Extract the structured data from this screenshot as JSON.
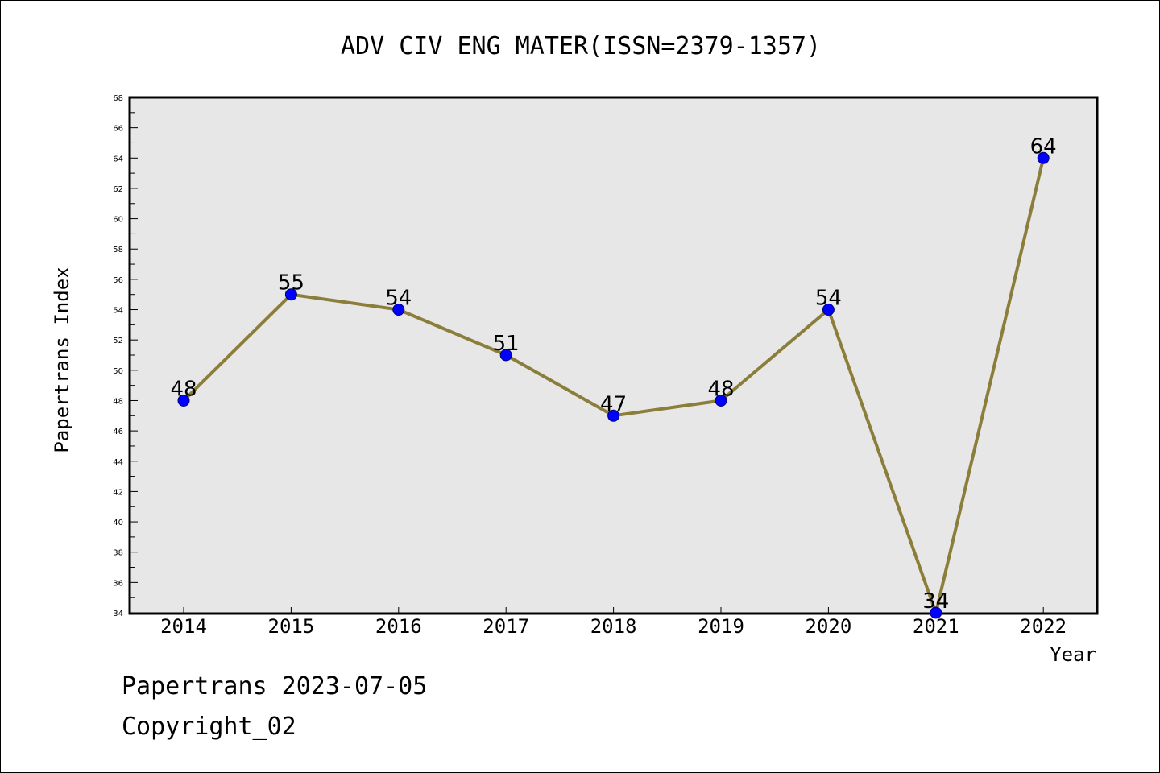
{
  "chart_data": {
    "type": "line",
    "title": "ADV CIV ENG MATER(ISSN=2379-1357)",
    "xlabel": "Year",
    "ylabel": "Papertrans Index",
    "categories": [
      "2014",
      "2015",
      "2016",
      "2017",
      "2018",
      "2019",
      "2020",
      "2021",
      "2022"
    ],
    "series": [
      {
        "values": [
          48,
          55,
          54,
          51,
          47,
          48,
          54,
          34,
          64
        ]
      }
    ],
    "data_labels": [
      "48",
      "55",
      "54",
      "51",
      "47",
      "48",
      "54",
      "34",
      "64"
    ],
    "ylim": [
      34,
      68
    ],
    "yticks": [
      "34",
      "36",
      "38",
      "40",
      "42",
      "44",
      "46",
      "48",
      "50",
      "52",
      "54",
      "56",
      "58",
      "60",
      "62",
      "64",
      "66",
      "68"
    ],
    "grid": false,
    "legend": "none",
    "colors": {
      "line": "#8b7d3a",
      "marker": "#0000ff",
      "plot_background": "#e7e7e7"
    }
  },
  "footer": {
    "date_line": "Papertrans 2023-07-05",
    "copyright": "Copyright_02"
  }
}
